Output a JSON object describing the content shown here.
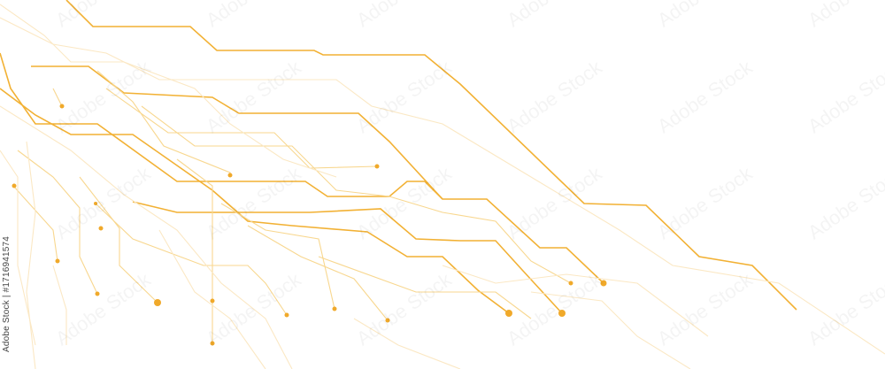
{
  "credit": {
    "text": "Adobe Stock | #1716941574"
  },
  "watermark": {
    "text": "Adobe Stock"
  },
  "colors": {
    "trace_strong": "#f2b134",
    "trace_light": "#f8d78f",
    "trace_faint": "#fbe8c4",
    "node": "#f0a92a",
    "background": "#ffffff"
  }
}
